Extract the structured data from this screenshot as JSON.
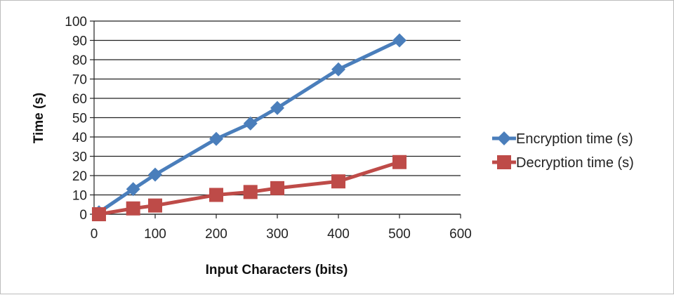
{
  "chart_data": {
    "type": "line",
    "title": "",
    "xlabel": "Input Characters (bits)",
    "ylabel": "Time (s)",
    "xlim": [
      0,
      600
    ],
    "ylim": [
      0,
      100
    ],
    "x_ticks": [
      "0",
      "100",
      "200",
      "300",
      "400",
      "500",
      "600"
    ],
    "y_ticks": [
      "0",
      "10",
      "20",
      "30",
      "40",
      "50",
      "60",
      "70",
      "80",
      "90",
      "100"
    ],
    "grid": "horizontal",
    "legend_position": "right",
    "series": [
      {
        "name": "Encryption time (s)",
        "color": "#4a7ebb",
        "marker": "diamond",
        "x": [
          8,
          64,
          100,
          200,
          256,
          300,
          400,
          500
        ],
        "y": [
          1,
          13,
          20.5,
          39,
          47,
          55,
          75,
          90
        ]
      },
      {
        "name": "Decryption time (s)",
        "color": "#be4b48",
        "marker": "square",
        "x": [
          8,
          64,
          100,
          200,
          256,
          300,
          400,
          500
        ],
        "y": [
          0,
          3,
          4.5,
          10,
          11.5,
          13.5,
          17,
          27
        ]
      }
    ]
  }
}
